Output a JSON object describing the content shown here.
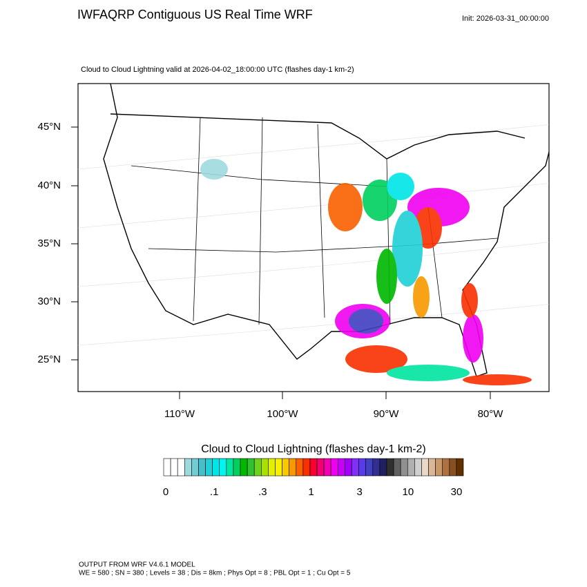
{
  "header": {
    "title": "IWFAQRP Contiguous US Real Time WRF",
    "init": "Init: 2026-03-31_00:00:00"
  },
  "map": {
    "subtitle": "Cloud to Cloud Lightning valid at 2026-04-02_18:00:00 UTC   (flashes day-1 km-2)",
    "lat_labels": [
      "45°N",
      "40°N",
      "35°N",
      "30°N",
      "25°N"
    ],
    "lon_labels": [
      "110°W",
      "100°W",
      "90°W",
      "80°W"
    ]
  },
  "colorbar": {
    "title": "Cloud to Cloud Lightning  (flashes day-1 km-2)",
    "labels": [
      "0",
      ".1",
      ".3",
      "1",
      "3",
      "10",
      "30"
    ],
    "colors": [
      "#ffffff",
      "#ffffff",
      "#ffffff",
      "#9ed9de",
      "#72ccd3",
      "#46bfc8",
      "#20d0d8",
      "#00e5e8",
      "#00f5f0",
      "#00e5a0",
      "#00d060",
      "#00b800",
      "#30c030",
      "#70d020",
      "#a8e000",
      "#e0f000",
      "#f8f000",
      "#f8c800",
      "#f89800",
      "#f86000",
      "#f83000",
      "#f80030",
      "#f00070",
      "#f000b0",
      "#f000f0",
      "#c800f8",
      "#a000f8",
      "#8030f8",
      "#5a3ae8",
      "#4040c0",
      "#303090",
      "#202060",
      "#303030",
      "#606060",
      "#909090",
      "#b0b0b0",
      "#d0d0d0",
      "#e8d8c8",
      "#d8b898",
      "#c89868",
      "#b07040",
      "#885020",
      "#603000"
    ]
  },
  "footer": {
    "line1": "OUTPUT FROM WRF V4.6.1 MODEL",
    "line2": "WE = 580 ; SN = 380 ; Levels = 38 ; Dis = 8km ; Phys Opt = 8 ; PBL Opt = 1 ; Cu Opt = 5"
  }
}
